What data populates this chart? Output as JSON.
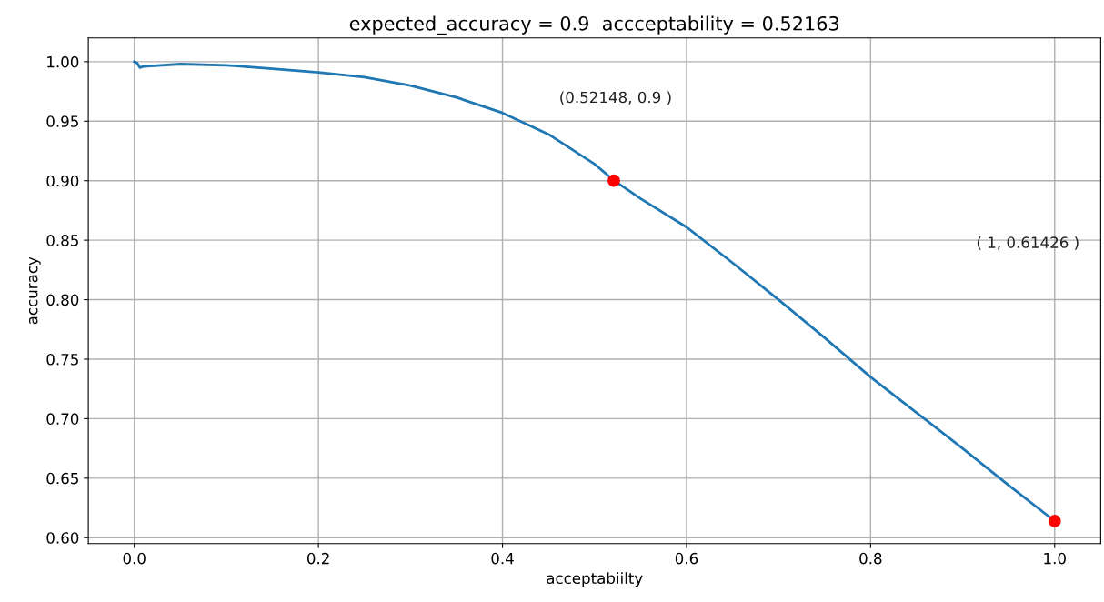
{
  "chart_data": {
    "type": "line",
    "title": "expected_accuracy = 0.9  accceptability = 0.52163",
    "xlabel": "acceptabiilty",
    "ylabel": "accuracy",
    "series": [
      {
        "color": "#1f77b4",
        "x": [
          0,
          0.003,
          0.006,
          0.01,
          0.05,
          0.1,
          0.15,
          0.2,
          0.25,
          0.3,
          0.35,
          0.4,
          0.45,
          0.5,
          0.52148,
          0.55,
          0.6,
          0.65,
          0.7,
          0.75,
          0.8,
          0.85,
          0.9,
          0.95,
          1
        ],
        "values": [
          1.0,
          0.999,
          0.995,
          0.996,
          0.998,
          0.997,
          0.994,
          0.991,
          0.987,
          0.98,
          0.97,
          0.957,
          0.939,
          0.914,
          0.9,
          0.885,
          0.861,
          0.831,
          0.8,
          0.768,
          0.735,
          0.705,
          0.675,
          0.644,
          0.614
        ]
      },
      {
        "type": "scatter",
        "color": "#ff0000",
        "marker": "circle",
        "x": [
          0.521,
          1
        ],
        "values": [
          0.9,
          0.614
        ]
      }
    ],
    "annotations": [
      "(0.52148, 0.9 )",
      "( 1, 0.61426 )"
    ],
    "xlim": [
      -0.05,
      1.05
    ],
    "ylim": [
      0.595,
      1.02
    ],
    "xticks": [
      {
        "value": 0,
        "label": "0.0"
      },
      {
        "value": 0.2,
        "label": "0.2"
      },
      {
        "value": 0.4,
        "label": "0.4"
      },
      {
        "value": 0.6,
        "label": "0.6"
      },
      {
        "value": 0.8,
        "label": "0.8"
      },
      {
        "value": 1,
        "label": "1.0"
      }
    ],
    "yticks": [
      {
        "value": 0.6,
        "label": "0.60"
      },
      {
        "value": 0.65,
        "label": "0.65"
      },
      {
        "value": 0.7,
        "label": "0.70"
      },
      {
        "value": 0.75,
        "label": "0.75"
      },
      {
        "value": 0.8,
        "label": "0.80"
      },
      {
        "value": 0.85,
        "label": "0.85"
      },
      {
        "value": 0.9,
        "label": "0.90"
      },
      {
        "value": 0.95,
        "label": "0.95"
      },
      {
        "value": 1.0,
        "label": "1.00"
      }
    ],
    "grid": true
  }
}
